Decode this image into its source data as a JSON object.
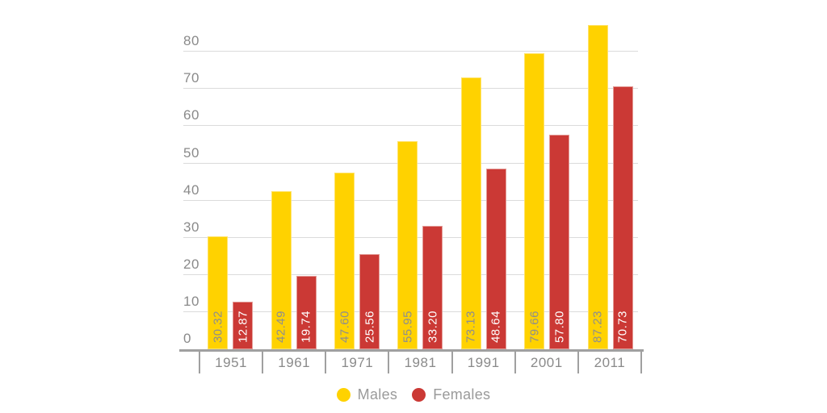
{
  "chart_data": {
    "type": "bar",
    "title": "",
    "xlabel": "",
    "ylabel": "",
    "categories": [
      "1951",
      "1961",
      "1971",
      "1981",
      "1991",
      "2001",
      "2011"
    ],
    "series": [
      {
        "name": "Males",
        "color": "#FFD200",
        "edge_color": "#FFE36B",
        "label_color": "#8E8E8E",
        "values": [
          30.32,
          42.49,
          47.6,
          55.95,
          73.13,
          79.66,
          87.23
        ]
      },
      {
        "name": "Females",
        "color": "#CB3935",
        "edge_color": "#E39B96",
        "label_color": "#FFFFFF",
        "values": [
          12.87,
          19.74,
          25.56,
          33.2,
          48.64,
          57.8,
          70.73
        ]
      }
    ],
    "yticks": [
      0,
      10,
      20,
      30,
      40,
      50,
      60,
      70,
      80
    ],
    "ylim": [
      0,
      90
    ],
    "grid": true,
    "legend_position": "bottom",
    "value_label_decimals": 2,
    "value_label_rotation": -90
  },
  "style_colors": {
    "background": "#FFFFFF",
    "gridline": "#DBDBDB",
    "axis_line": "#A0A0A0",
    "tick_text": "#8A8A8A",
    "legend_text": "#9A9A9A"
  }
}
